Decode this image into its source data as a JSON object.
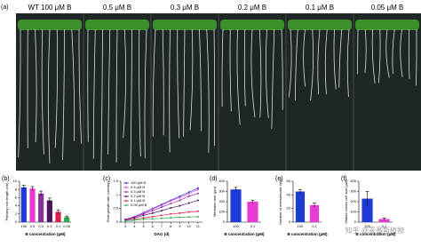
{
  "photo_panel": {
    "label": "(a)",
    "columns": [
      "WT 100 μM B",
      "0.5 μM B",
      "0.3 μM B",
      "0.2 μM B",
      "0.1 μM B",
      "0.05 μM B"
    ]
  },
  "watermark": "知乎 @青番斯植物",
  "chart_data": [
    {
      "type": "bar",
      "panel": "(b)",
      "ylabel": "Primary root length (cm)",
      "xlabel": "B concentration (μM)",
      "categories": [
        "100",
        "0.5",
        "0.3",
        "0.2",
        "0.1",
        "0.05"
      ],
      "values": [
        8.5,
        8.2,
        7,
        5.3,
        2.5,
        1.2
      ],
      "errors": [
        0.5,
        0.5,
        0.6,
        0.6,
        0.5,
        0.3
      ],
      "colors": [
        "#1f3bd6",
        "#e83bd3",
        "#8a2f9e",
        "#4b1460",
        "#d8204a",
        "#2eaa4a"
      ],
      "ylim": [
        0,
        10
      ],
      "yticks": [
        0,
        2,
        4,
        6,
        8,
        10
      ]
    },
    {
      "type": "line",
      "panel": "(c)",
      "ylabel": "Root growth rate (cm/day)",
      "xlabel": "DAG (d)",
      "x": [
        3,
        4,
        5,
        6,
        7,
        8,
        9,
        10,
        11
      ],
      "xlim": [
        2.5,
        11.5
      ],
      "xticks": [
        3,
        4,
        5,
        6,
        7,
        8,
        9,
        10,
        11
      ],
      "ylim": [
        0,
        1.5
      ],
      "yticks": [
        0,
        0.5,
        1,
        1.5
      ],
      "series": [
        {
          "name": "100 μM B",
          "color": "#1f3bd6",
          "values": [
            0.1,
            0.2,
            0.35,
            0.5,
            0.65,
            0.8,
            0.95,
            1.1,
            1.25
          ]
        },
        {
          "name": "0.5 μM B",
          "color": "#e83bd3",
          "values": [
            0.1,
            0.2,
            0.33,
            0.48,
            0.62,
            0.78,
            0.9,
            1.05,
            1.2
          ]
        },
        {
          "name": "0.3 μM B",
          "color": "#8a2f9e",
          "values": [
            0.1,
            0.18,
            0.3,
            0.42,
            0.55,
            0.68,
            0.8,
            0.95,
            1.05
          ]
        },
        {
          "name": "0.2 μM B",
          "color": "#4b1460",
          "values": [
            0.08,
            0.15,
            0.25,
            0.33,
            0.42,
            0.52,
            0.6,
            0.7,
            0.8
          ]
        },
        {
          "name": "0.1 μM B",
          "color": "#d8204a",
          "values": [
            0.06,
            0.1,
            0.15,
            0.2,
            0.25,
            0.3,
            0.33,
            0.37,
            0.4
          ]
        },
        {
          "name": "0.05 μM B",
          "color": "#2eaa4a",
          "values": [
            0.05,
            0.07,
            0.1,
            0.12,
            0.14,
            0.16,
            0.18,
            0.19,
            0.2
          ]
        }
      ]
    },
    {
      "type": "bar",
      "panel": "(d)",
      "ylabel": "Meristem size (μm)",
      "xlabel": "B concentration (μM)",
      "categories": [
        "100",
        "0.1"
      ],
      "values": [
        320,
        200
      ],
      "errors": [
        20,
        15
      ],
      "colors": [
        "#1f3bd6",
        "#e83bd3"
      ],
      "ylim": [
        0,
        400
      ],
      "yticks": [
        0,
        100,
        200,
        300,
        400
      ]
    },
    {
      "type": "bar",
      "panel": "(e)",
      "ylabel": "Number of meristematic cells",
      "xlabel": "B concentration (μM)",
      "categories": [
        "100",
        "0.1"
      ],
      "values": [
        45,
        25
      ],
      "errors": [
        3,
        3
      ],
      "colors": [
        "#1f3bd6",
        "#e83bd3"
      ],
      "ylim": [
        0,
        60
      ],
      "yticks": [
        0,
        20,
        40,
        60
      ]
    },
    {
      "type": "bar",
      "panel": "(f)",
      "ylabel": "Mature cortex cell size (μm)",
      "xlabel": "B concentration (μM)",
      "categories": [
        "100",
        "0.1"
      ],
      "values": [
        230,
        30
      ],
      "errors": [
        70,
        10
      ],
      "colors": [
        "#1f3bd6",
        "#e83bd3"
      ],
      "ylim": [
        0,
        400
      ],
      "yticks": [
        0,
        100,
        200,
        300,
        400
      ]
    }
  ]
}
